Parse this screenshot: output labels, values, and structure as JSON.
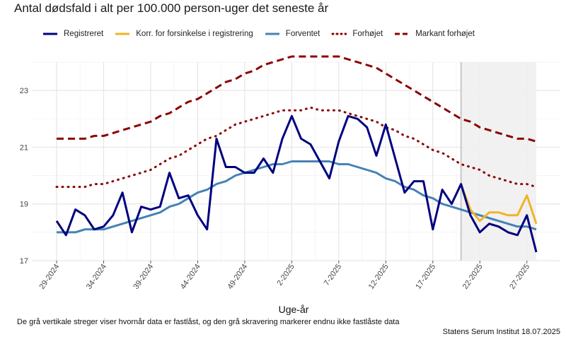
{
  "title": "Antal dødsfald i alt per 100.000 person-uger det seneste år",
  "legend": [
    {
      "label": "Registreret",
      "color": "#00007f",
      "style": "solid"
    },
    {
      "label": "Korr. for forsinkelse i registrering",
      "color": "#f0b429",
      "style": "solid"
    },
    {
      "label": "Forventet",
      "color": "#4682b4",
      "style": "solid"
    },
    {
      "label": "Forhøjet",
      "color": "#8b0000",
      "style": "dotted"
    },
    {
      "label": "Markant forhøjet",
      "color": "#8b0000",
      "style": "dashed"
    }
  ],
  "caption": "De grå vertikale streger viser hvornår data er fastlåst, og den grå skravering markerer endnu ikke fastlåste data",
  "source": "Statens Serum Institut  18.07.2025",
  "chart_data": {
    "type": "line",
    "title": "Antal dødsfald i alt per 100.000 person-uger det seneste år",
    "xlabel": "Uge-år",
    "ylabel": "",
    "ylim": [
      17,
      24
    ],
    "yticks": [
      17,
      19,
      21,
      23
    ],
    "weeks": [
      "29-2024",
      "30-2024",
      "31-2024",
      "32-2024",
      "33-2024",
      "34-2024",
      "35-2024",
      "36-2024",
      "37-2024",
      "38-2024",
      "39-2024",
      "40-2024",
      "41-2024",
      "42-2024",
      "43-2024",
      "44-2024",
      "45-2024",
      "46-2024",
      "47-2024",
      "48-2024",
      "49-2024",
      "50-2024",
      "51-2024",
      "52-2024",
      "1-2025",
      "2-2025",
      "3-2025",
      "4-2025",
      "5-2025",
      "6-2025",
      "7-2025",
      "8-2025",
      "9-2025",
      "10-2025",
      "11-2025",
      "12-2025",
      "13-2025",
      "14-2025",
      "15-2025",
      "16-2025",
      "17-2025",
      "18-2025",
      "19-2025",
      "20-2025",
      "21-2025",
      "22-2025",
      "23-2025",
      "24-2025",
      "25-2025",
      "26-2025",
      "27-2025",
      "28-2025"
    ],
    "xticks": [
      "29-2024",
      "34-2024",
      "39-2024",
      "44-2024",
      "49-2024",
      "2-2025",
      "7-2025",
      "12-2025",
      "17-2025",
      "22-2025",
      "27-2025"
    ],
    "shaded_from": "20-2025",
    "shaded_to": "28-2025",
    "series": [
      {
        "name": "Registreret",
        "color": "#00007f",
        "values": [
          18.4,
          17.9,
          18.8,
          18.6,
          18.1,
          18.2,
          18.6,
          19.4,
          18.0,
          18.9,
          18.8,
          18.9,
          20.1,
          19.2,
          19.3,
          18.6,
          18.1,
          21.3,
          20.3,
          20.3,
          20.1,
          20.1,
          20.6,
          20.1,
          21.3,
          22.1,
          21.3,
          21.1,
          20.5,
          19.9,
          21.2,
          22.1,
          22.0,
          21.7,
          20.7,
          21.8,
          20.6,
          19.4,
          19.8,
          19.8,
          18.1,
          19.5,
          19.0,
          19.7,
          18.6,
          18.0,
          18.3,
          18.2,
          18.0,
          17.9,
          18.6,
          17.3
        ]
      },
      {
        "name": "Korr. for forsinkelse i registrering",
        "color": "#f0b429",
        "start_index": 43,
        "values": [
          19.7,
          18.8,
          18.4,
          18.7,
          18.7,
          18.6,
          18.6,
          19.3,
          18.3
        ]
      },
      {
        "name": "Forventet",
        "color": "#4682b4",
        "values": [
          18.0,
          18.0,
          18.0,
          18.1,
          18.1,
          18.1,
          18.2,
          18.3,
          18.4,
          18.5,
          18.6,
          18.7,
          18.9,
          19.0,
          19.2,
          19.4,
          19.5,
          19.7,
          19.8,
          20.0,
          20.1,
          20.2,
          20.3,
          20.4,
          20.4,
          20.5,
          20.5,
          20.5,
          20.5,
          20.5,
          20.4,
          20.4,
          20.3,
          20.2,
          20.1,
          19.9,
          19.8,
          19.6,
          19.5,
          19.3,
          19.2,
          19.0,
          18.9,
          18.8,
          18.7,
          18.6,
          18.5,
          18.4,
          18.3,
          18.2,
          18.2,
          18.1
        ]
      },
      {
        "name": "Forhøjet",
        "color": "#8b0000",
        "values": [
          19.6,
          19.6,
          19.6,
          19.6,
          19.7,
          19.7,
          19.8,
          19.9,
          20.0,
          20.1,
          20.2,
          20.4,
          20.6,
          20.7,
          20.9,
          21.1,
          21.3,
          21.4,
          21.6,
          21.8,
          21.9,
          22.0,
          22.1,
          22.2,
          22.3,
          22.3,
          22.3,
          22.4,
          22.3,
          22.3,
          22.3,
          22.2,
          22.1,
          22.0,
          21.9,
          21.7,
          21.6,
          21.4,
          21.3,
          21.1,
          20.9,
          20.8,
          20.6,
          20.4,
          20.3,
          20.2,
          20.0,
          19.9,
          19.8,
          19.7,
          19.7,
          19.6
        ]
      },
      {
        "name": "Markant forhøjet",
        "color": "#8b0000",
        "values": [
          21.3,
          21.3,
          21.3,
          21.3,
          21.4,
          21.4,
          21.5,
          21.6,
          21.7,
          21.8,
          21.9,
          22.1,
          22.2,
          22.4,
          22.6,
          22.7,
          22.9,
          23.1,
          23.3,
          23.4,
          23.6,
          23.7,
          23.9,
          24.0,
          24.1,
          24.2,
          24.2,
          24.2,
          24.2,
          24.2,
          24.2,
          24.1,
          24.0,
          23.9,
          23.8,
          23.6,
          23.4,
          23.2,
          23.0,
          22.8,
          22.6,
          22.4,
          22.2,
          22.0,
          21.9,
          21.7,
          21.6,
          21.5,
          21.4,
          21.3,
          21.3,
          21.2
        ]
      }
    ]
  }
}
